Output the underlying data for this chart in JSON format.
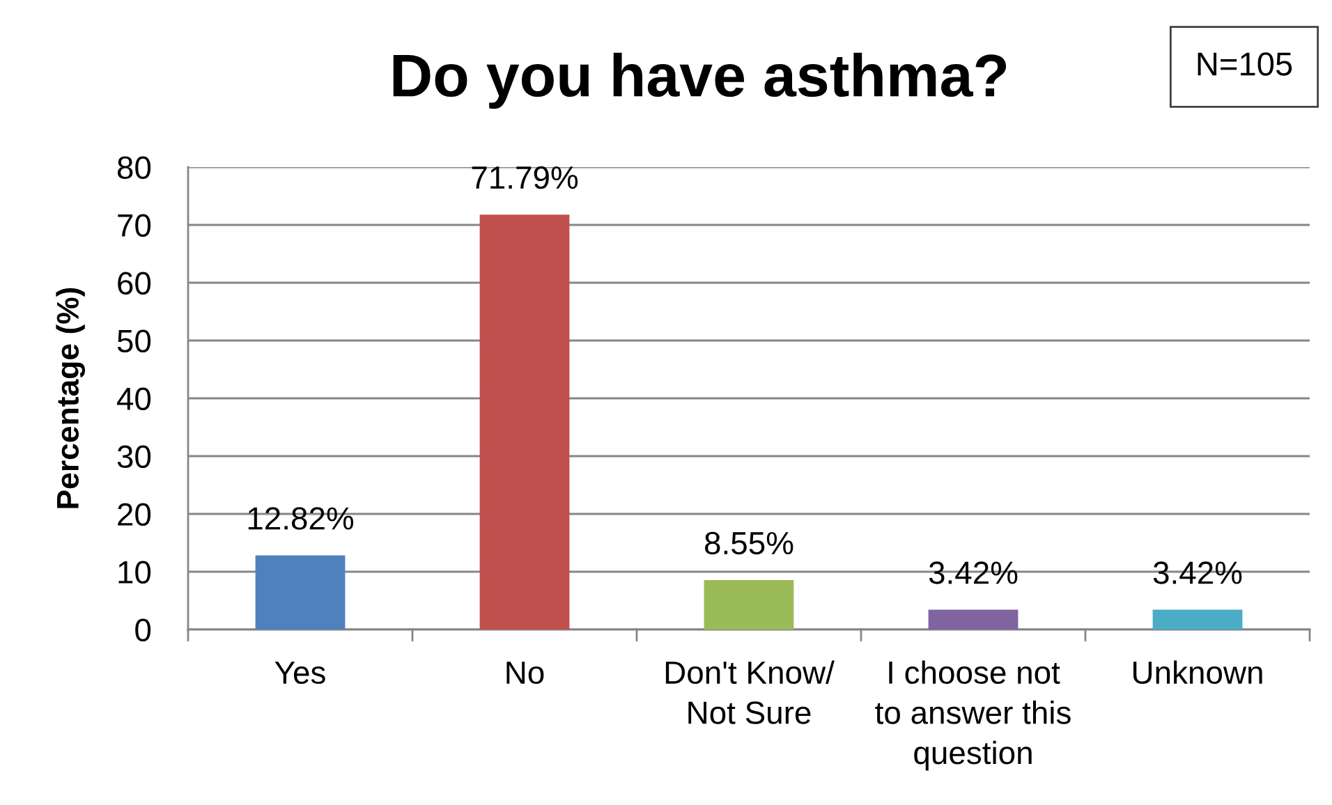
{
  "chart_data": {
    "type": "bar",
    "title": "Do you have asthma?",
    "ylabel": "Percentage (%)",
    "categories": [
      "Yes",
      "No",
      "Don't Know/ Not Sure",
      "I choose not to answer this question",
      "Unknown"
    ],
    "values": [
      12.82,
      71.79,
      8.55,
      3.42,
      3.42
    ],
    "colors": [
      "#4f81bd",
      "#c0504d",
      "#9bbb59",
      "#8064a2",
      "#4bacc6"
    ],
    "value_labels": [
      "12.82%",
      "71.79%",
      "8.55%",
      "3.42%",
      "3.42%"
    ],
    "ylim": [
      0,
      80
    ],
    "yticks": [
      0,
      10,
      20,
      30,
      40,
      50,
      60,
      70,
      80
    ],
    "grid": "y",
    "annotations": [
      "N=105"
    ]
  }
}
